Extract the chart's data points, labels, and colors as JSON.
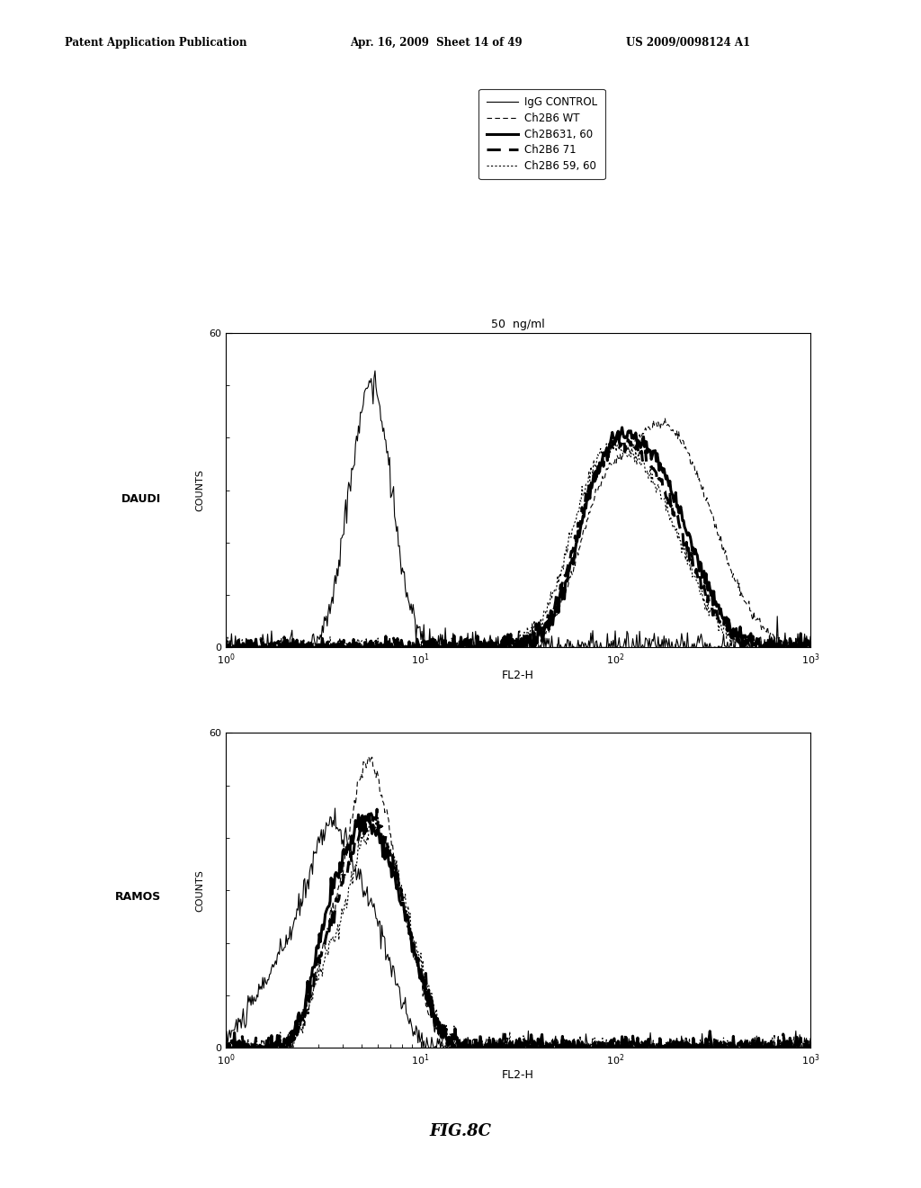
{
  "header_left": "Patent Application Publication",
  "header_mid": "Apr. 16, 2009  Sheet 14 of 49",
  "header_right": "US 2009/0098124 A1",
  "figure_label": "FIG.8C",
  "top_title": "50  ng/ml",
  "plot1_label": "DAUDI",
  "plot2_label": "RAMOS",
  "xlabel": "FL2-H",
  "ylabel": "COUNTS",
  "ylim": [
    0,
    60
  ],
  "background_color": "#ffffff"
}
